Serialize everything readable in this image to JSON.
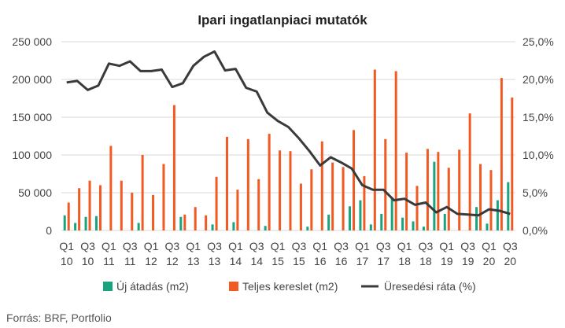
{
  "chart_data": {
    "type": "bar",
    "title": "Ipari ingatlanpiaci mutatók",
    "source": "Forrás: BRF, Portfolio",
    "periods": [
      "Q1 10",
      "Q2 10",
      "Q3 10",
      "Q4 10",
      "Q1 11",
      "Q2 11",
      "Q3 11",
      "Q4 11",
      "Q1 12",
      "Q2 12",
      "Q3 12",
      "Q4 12",
      "Q1 13",
      "Q2 13",
      "Q3 13",
      "Q4 13",
      "Q1 14",
      "Q2 14",
      "Q3 14",
      "Q4 14",
      "Q1 15",
      "Q2 15",
      "Q3 15",
      "Q4 15",
      "Q1 16",
      "Q2 16",
      "Q3 16",
      "Q4 16",
      "Q1 17",
      "Q2 17",
      "Q3 17",
      "Q4 17",
      "Q1 18",
      "Q2 18",
      "Q3 18",
      "Q4 18",
      "Q1 19",
      "Q2 19",
      "Q3 19",
      "Q4 19",
      "Q1 20",
      "Q2 20",
      "Q3 20"
    ],
    "x_tick_labels": [
      {
        "q": "Q1",
        "y": "10"
      },
      {
        "q": "Q3",
        "y": "10"
      },
      {
        "q": "Q1",
        "y": "11"
      },
      {
        "q": "Q3",
        "y": "11"
      },
      {
        "q": "Q1",
        "y": "12"
      },
      {
        "q": "Q3",
        "y": "12"
      },
      {
        "q": "Q1",
        "y": "13"
      },
      {
        "q": "Q3",
        "y": "13"
      },
      {
        "q": "Q1",
        "y": "14"
      },
      {
        "q": "Q3",
        "y": "14"
      },
      {
        "q": "Q1",
        "y": "15"
      },
      {
        "q": "Q3",
        "y": "15"
      },
      {
        "q": "Q1",
        "y": "16"
      },
      {
        "q": "Q3",
        "y": "16"
      },
      {
        "q": "Q1",
        "y": "17"
      },
      {
        "q": "Q3",
        "y": "17"
      },
      {
        "q": "Q1",
        "y": "18"
      },
      {
        "q": "Q3",
        "y": "18"
      },
      {
        "q": "Q1",
        "y": "19"
      },
      {
        "q": "Q3",
        "y": "19"
      },
      {
        "q": "Q1",
        "y": "20"
      },
      {
        "q": "Q3",
        "y": "20"
      }
    ],
    "y_left": {
      "min": 0,
      "max": 250000,
      "ticks": [
        0,
        50000,
        100000,
        150000,
        200000,
        250000
      ],
      "tick_labels": [
        "0",
        "50 000",
        "100 000",
        "150 000",
        "200 000",
        "250 000"
      ]
    },
    "y_right": {
      "min": 0,
      "max": 25,
      "ticks": [
        0,
        5,
        10,
        15,
        20,
        25
      ],
      "tick_labels": [
        "0,0%",
        "5,0%",
        "10,0%",
        "15,0%",
        "20,0%",
        "25,0%"
      ]
    },
    "grid": true,
    "legend_position": "bottom",
    "series": [
      {
        "name": "Új átadás (m2)",
        "type": "bar",
        "axis": "left",
        "color": "#1aa37f",
        "values": [
          20000,
          10000,
          18000,
          19000,
          0,
          0,
          0,
          10000,
          0,
          0,
          0,
          18000,
          0,
          0,
          8000,
          0,
          11000,
          0,
          0,
          6000,
          0,
          0,
          0,
          5000,
          0,
          21000,
          0,
          32000,
          40000,
          8000,
          22000,
          44000,
          17000,
          12000,
          5000,
          91000,
          22000,
          0,
          0,
          31000,
          9000,
          40000,
          64000
        ]
      },
      {
        "name": "Teljes kereslet (m2)",
        "type": "bar",
        "axis": "left",
        "color": "#f15a22",
        "values": [
          37000,
          56000,
          66000,
          60000,
          112000,
          66000,
          50000,
          100000,
          47000,
          88000,
          166000,
          21000,
          31000,
          20000,
          71000,
          124000,
          54000,
          121000,
          68000,
          128000,
          106000,
          105000,
          62000,
          81000,
          118000,
          90000,
          84000,
          133000,
          72000,
          213000,
          121000,
          211000,
          103000,
          59000,
          108000,
          104000,
          83000,
          107000,
          155000,
          88000,
          80000,
          202000,
          176000
        ]
      },
      {
        "name": "Üresedési ráta (%)",
        "type": "line",
        "axis": "right",
        "color": "#3a3a3a",
        "values": [
          19.6,
          19.8,
          18.6,
          19.2,
          22.1,
          21.8,
          22.4,
          21.1,
          21.1,
          21.3,
          19.0,
          19.5,
          21.8,
          23.0,
          23.7,
          21.2,
          21.4,
          18.9,
          18.4,
          15.6,
          14.5,
          13.7,
          12.2,
          10.5,
          8.6,
          9.7,
          9.0,
          8.2,
          6.0,
          5.4,
          5.4,
          4.0,
          4.2,
          3.4,
          3.7,
          2.4,
          3.1,
          2.2,
          2.1,
          2.0,
          2.8,
          2.6,
          2.2
        ]
      }
    ]
  }
}
